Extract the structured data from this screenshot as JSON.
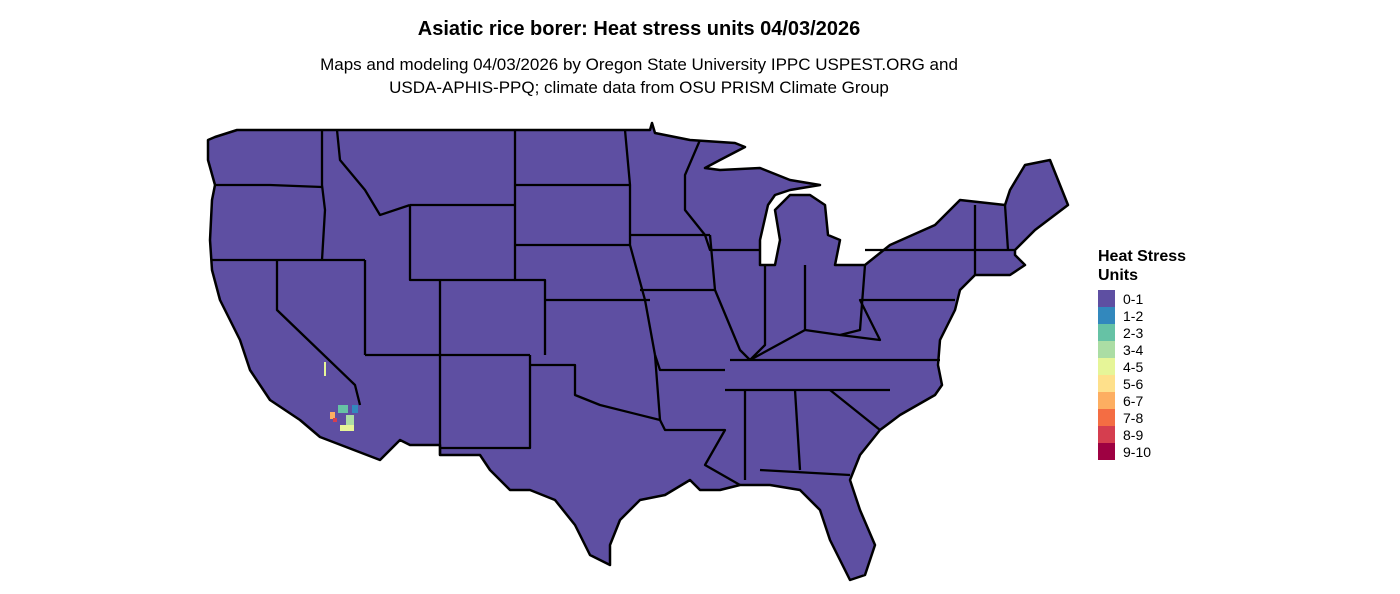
{
  "title": "Asiatic rice borer: Heat stress units 04/03/2026",
  "subtitle_line1": "Maps and modeling 04/03/2026 by Oregon State University IPPC USPEST.ORG and",
  "subtitle_line2": "USDA-APHIS-PPQ; climate data from OSU PRISM Climate Group",
  "map": {
    "region": "contiguous United States",
    "dominant_class": "0-1",
    "fill_color": "#5E4FA2",
    "border_color": "#000000"
  },
  "legend": {
    "title": "Heat Stress Units",
    "items": [
      {
        "label": "0-1",
        "color": "#5E4FA2"
      },
      {
        "label": "1-2",
        "color": "#3288BD"
      },
      {
        "label": "2-3",
        "color": "#66C2A5"
      },
      {
        "label": "3-4",
        "color": "#ABDDA4"
      },
      {
        "label": "4-5",
        "color": "#E6F598"
      },
      {
        "label": "5-6",
        "color": "#FEE08B"
      },
      {
        "label": "6-7",
        "color": "#FDAE61"
      },
      {
        "label": "7-8",
        "color": "#F46D43"
      },
      {
        "label": "8-9",
        "color": "#D53E4F"
      },
      {
        "label": "9-10",
        "color": "#9E0142"
      }
    ]
  }
}
